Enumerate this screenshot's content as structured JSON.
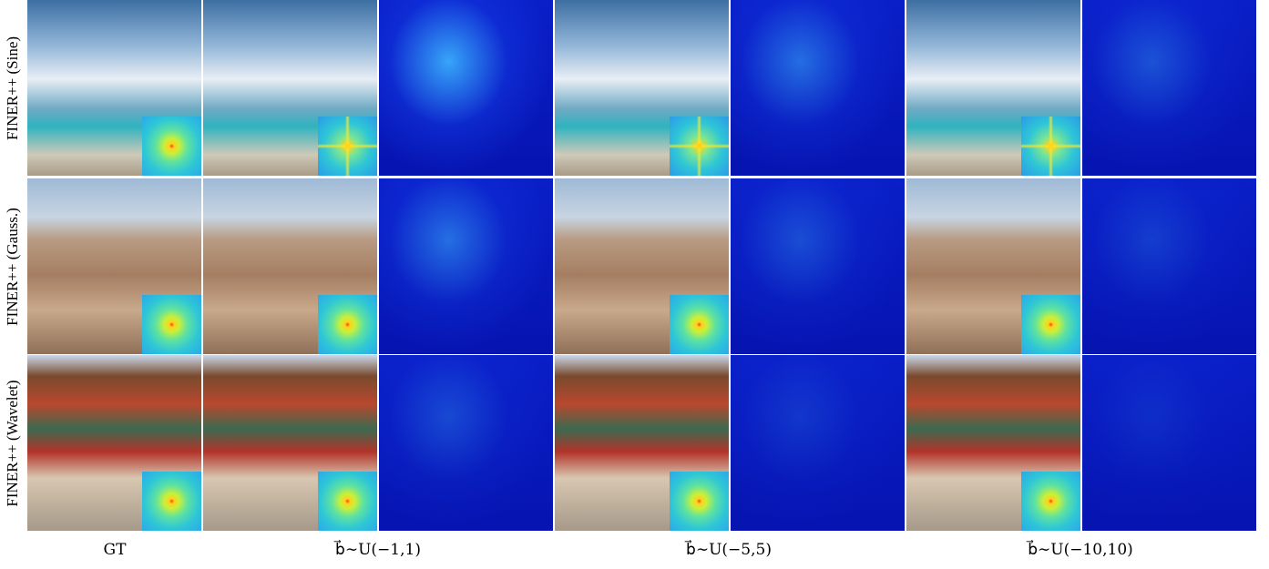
{
  "row_labels": [
    "FINER++ (Sine)",
    "FINER++ (Gauss.)",
    "FINER++ (Wavelet)"
  ],
  "column_labels": [
    "GT",
    "b⃗∼U(−1,1)",
    "b⃗∼U(−5,5)",
    "b⃗∼U(−10,10)"
  ]
}
